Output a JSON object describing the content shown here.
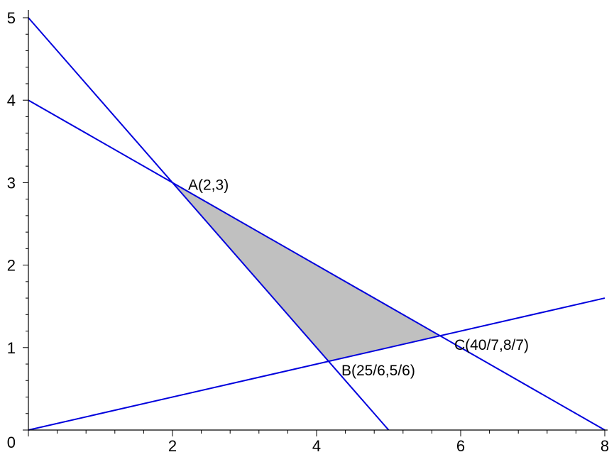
{
  "chart_data": {
    "type": "line",
    "title": "",
    "xlabel": "",
    "ylabel": "",
    "xlim": [
      0,
      8
    ],
    "ylim": [
      0,
      5
    ],
    "grid": false,
    "colors": {
      "line": "#0000dd",
      "region": "#c0c0c0",
      "axis": "#000000"
    },
    "x_tick_labels": [
      {
        "value": 2,
        "label": "2"
      },
      {
        "value": 4,
        "label": "4"
      },
      {
        "value": 6,
        "label": "6"
      },
      {
        "value": 8,
        "label": "8"
      }
    ],
    "y_tick_labels": [
      {
        "value": 0,
        "label": "0"
      },
      {
        "value": 1,
        "label": "1"
      },
      {
        "value": 2,
        "label": "2"
      },
      {
        "value": 3,
        "label": "3"
      },
      {
        "value": 4,
        "label": "4"
      },
      {
        "value": 5,
        "label": "5"
      }
    ],
    "series": [
      {
        "points": [
          [
            0,
            4
          ],
          [
            8,
            0
          ]
        ]
      },
      {
        "points": [
          [
            0,
            5
          ],
          [
            5,
            0
          ]
        ]
      },
      {
        "points": [
          [
            0,
            0
          ],
          [
            8,
            1.6
          ]
        ]
      }
    ],
    "shaded_region": {
      "vertices": [
        [
          2,
          3
        ],
        [
          5.714,
          1.143
        ],
        [
          4.167,
          0.833
        ]
      ]
    },
    "annotations": [
      {
        "text": "A(2,3)",
        "x": 2,
        "y": 3
      },
      {
        "text": "B(25/6,5/6)",
        "x": 4.167,
        "y": 0.833
      },
      {
        "text": "C(40/7,8/7)",
        "x": 5.714,
        "y": 1.143
      }
    ]
  }
}
